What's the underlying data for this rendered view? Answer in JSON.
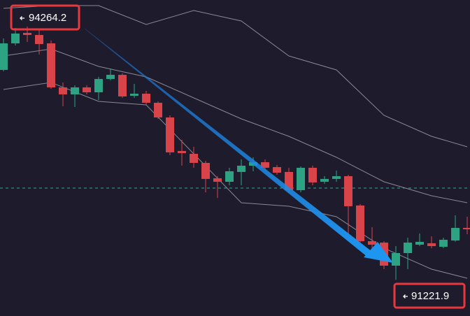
{
  "chart_data": {
    "type": "candlestick",
    "categories": [
      null,
      null,
      null,
      null,
      null,
      null,
      null,
      null,
      null,
      null,
      null,
      null,
      null,
      null,
      null,
      null,
      null,
      null,
      null,
      null,
      null,
      null,
      null,
      null,
      null,
      null,
      null,
      null,
      null,
      null,
      null,
      null,
      null,
      null,
      null,
      null,
      null,
      null,
      null,
      null
    ],
    "open": [
      93743,
      94062,
      94188,
      94163,
      94062,
      93533,
      93449,
      93533,
      93474,
      93634,
      93684,
      93432,
      93457,
      93348,
      93172,
      92769,
      92735,
      92626,
      92441,
      92399,
      92517,
      92592,
      92634,
      92575,
      92517,
      92298,
      92567,
      92399,
      92433,
      92466,
      92114,
      91685,
      91668,
      91391,
      91542,
      91643,
      91660,
      91618,
      91693,
      91845
    ],
    "high": [
      94121,
      94247,
      94264,
      94230,
      94096,
      93592,
      93558,
      93558,
      93659,
      93760,
      93701,
      93575,
      93491,
      93365,
      93197,
      92903,
      92819,
      92651,
      92466,
      92567,
      92668,
      92693,
      92668,
      92601,
      92567,
      92584,
      92592,
      92466,
      92533,
      92483,
      92131,
      91853,
      91685,
      91626,
      91727,
      91778,
      91744,
      91727,
      91996,
      91979
    ],
    "low": [
      93726,
      94037,
      94079,
      93928,
      93516,
      93306,
      93298,
      93449,
      93382,
      93617,
      93407,
      93407,
      93323,
      93155,
      92718,
      92592,
      92567,
      92273,
      92206,
      92357,
      92357,
      92525,
      92525,
      92483,
      92273,
      92273,
      92357,
      92374,
      92399,
      91769,
      91643,
      91517,
      91349,
      91222,
      91349,
      91626,
      91601,
      91601,
      91677,
      91769
    ],
    "close": [
      94062,
      94180,
      94163,
      94054,
      93533,
      93449,
      93533,
      93474,
      93634,
      93684,
      93424,
      93457,
      93348,
      93172,
      92752,
      92743,
      92626,
      92433,
      92399,
      92525,
      92592,
      92634,
      92567,
      92508,
      92298,
      92567,
      92391,
      92433,
      92466,
      92105,
      91685,
      91643,
      91391,
      91542,
      91668,
      91677,
      91626,
      91702,
      91845,
      91828
    ],
    "up_color": "#2ea383",
    "down_color": "#d9444a",
    "bands": [
      {
        "color": "#8a8893",
        "x": [
          0,
          4,
          8,
          12,
          16,
          20,
          24,
          28,
          32,
          36,
          39
        ],
        "values": [
          94483,
          94516,
          94516,
          94289,
          94457,
          94331,
          93911,
          93743,
          93197,
          92945,
          92819
        ]
      },
      {
        "color": "#8a8893",
        "x": [
          0,
          4,
          8,
          12,
          16,
          20,
          24,
          28,
          32,
          36,
          39
        ],
        "values": [
          93911,
          93995,
          93785,
          93659,
          93407,
          93155,
          92945,
          92693,
          92399,
          92231,
          92147
        ]
      },
      {
        "color": "#8a8893",
        "x": [
          0,
          4,
          8,
          12,
          16,
          20,
          24,
          28,
          32,
          36,
          39
        ],
        "values": [
          93508,
          93592,
          93365,
          93323,
          92735,
          92147,
          92105,
          91979,
          91601,
          91349,
          91240
        ]
      }
    ],
    "price_line": 92323,
    "price_line_color": "#2fa896",
    "ylim": [
      90786,
      94583
    ],
    "annotations": [
      {
        "text": "94264.2"
      },
      {
        "text": "91221.9"
      }
    ]
  }
}
